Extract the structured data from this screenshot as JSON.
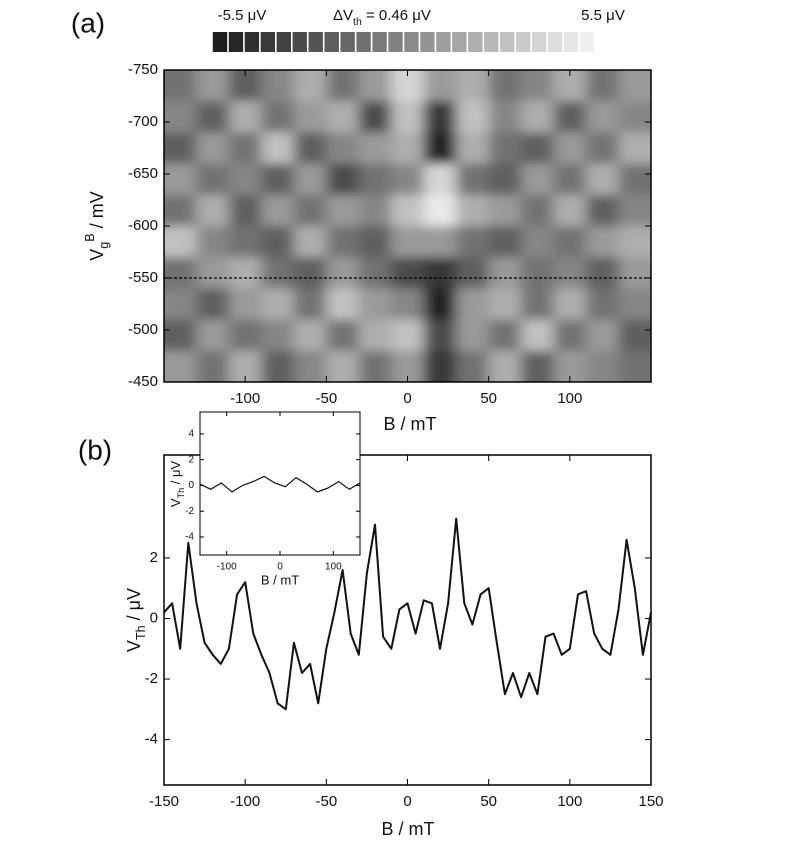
{
  "chart_data": [
    {
      "type": "heatmap",
      "panel_label": "(a)",
      "x_label": "B / mT",
      "y_label": [
        "V",
        "g",
        "B",
        " / mV"
      ],
      "x": [
        -140,
        -120,
        -100,
        -80,
        -60,
        -40,
        -20,
        0,
        20,
        40,
        60,
        80,
        100,
        120,
        140
      ],
      "y": [
        -735,
        -705,
        -675,
        -645,
        -615,
        -585,
        -555,
        -525,
        -495,
        -465
      ],
      "z": [
        [
          -1,
          1,
          -2,
          0,
          2,
          -1,
          1,
          4,
          1,
          2,
          -1,
          0,
          2,
          -1,
          1
        ],
        [
          0,
          -2,
          2,
          -1,
          1,
          2,
          -3,
          3,
          -4,
          3,
          0,
          2,
          -2,
          1,
          0
        ],
        [
          -2,
          1,
          -1,
          3,
          -2,
          0,
          1,
          2,
          -5,
          2,
          -1,
          -2,
          1,
          -1,
          2
        ],
        [
          1,
          -1,
          0,
          -2,
          1,
          -3,
          -1,
          0,
          4,
          -1,
          -2,
          1,
          -1,
          2,
          -1
        ],
        [
          -1,
          2,
          -2,
          1,
          -1,
          1,
          0,
          3,
          5,
          2,
          1,
          -1,
          2,
          -2,
          0
        ],
        [
          3,
          0,
          -1,
          -2,
          2,
          -1,
          -2,
          1,
          1,
          -1,
          -2,
          0,
          -1,
          1,
          2
        ],
        [
          -1,
          1,
          2,
          -1,
          -2,
          1,
          -1,
          -3,
          -4,
          -2,
          1,
          -1,
          0,
          -2,
          1
        ],
        [
          0,
          -2,
          1,
          2,
          -1,
          3,
          1,
          0,
          -5,
          1,
          2,
          -1,
          2,
          -1,
          0
        ],
        [
          -2,
          1,
          -1,
          0,
          2,
          -1,
          2,
          3,
          -3,
          1,
          -1,
          3,
          -1,
          1,
          -2
        ],
        [
          1,
          -1,
          2,
          -2,
          0,
          2,
          -1,
          1,
          -4,
          -1,
          2,
          -2,
          1,
          0,
          -1
        ]
      ],
      "xlim": [
        -150,
        150
      ],
      "ylim": [
        -450,
        -750
      ],
      "xticks": [
        -100,
        -50,
        0,
        50,
        100
      ],
      "yticks": [
        -750,
        -700,
        -650,
        -600,
        -550,
        -500,
        -450
      ],
      "clim": [
        -5.5,
        5.5
      ],
      "step": 0.46,
      "colorbar_labels": {
        "min": "-5.5 μV",
        "step": [
          "ΔV",
          "th",
          " = 0.46 μV"
        ],
        "max": "5.5 μV"
      },
      "hline": -550
    },
    {
      "type": "line",
      "panel_label": "(b)",
      "x_label": "B / mT",
      "y_label": [
        "V",
        "Th",
        " / μV"
      ],
      "color": "#111111",
      "x": [
        -150,
        -145,
        -140,
        -135,
        -130,
        -125,
        -120,
        -115,
        -110,
        -105,
        -100,
        -95,
        -90,
        -85,
        -80,
        -75,
        -70,
        -65,
        -60,
        -55,
        -50,
        -45,
        -40,
        -35,
        -30,
        -25,
        -20,
        -15,
        -10,
        -5,
        0,
        5,
        10,
        15,
        20,
        25,
        30,
        35,
        40,
        45,
        50,
        55,
        60,
        65,
        70,
        75,
        80,
        85,
        90,
        95,
        100,
        105,
        110,
        115,
        120,
        125,
        130,
        135,
        140,
        145,
        150
      ],
      "values": [
        0.2,
        0.5,
        -1.0,
        2.5,
        0.5,
        -0.8,
        -1.2,
        -1.5,
        -1.0,
        0.8,
        1.2,
        -0.5,
        -1.2,
        -1.8,
        -2.8,
        -3.0,
        -0.8,
        -1.8,
        -1.5,
        -2.8,
        -1.0,
        0.2,
        1.6,
        -0.5,
        -1.2,
        1.5,
        3.1,
        -0.6,
        -1.0,
        0.3,
        0.5,
        -0.5,
        0.6,
        0.5,
        -1.0,
        0.5,
        3.3,
        0.5,
        -0.2,
        0.8,
        1.0,
        -0.8,
        -2.5,
        -1.8,
        -2.6,
        -1.8,
        -2.5,
        -0.6,
        -0.5,
        -1.2,
        -1.0,
        0.8,
        0.9,
        -0.5,
        -1.0,
        -1.2,
        0.3,
        2.6,
        1.0,
        -1.2,
        0.2
      ],
      "xlim": [
        -150,
        150
      ],
      "ylim": [
        -5.5,
        5.4
      ],
      "xticks": [
        -150,
        -100,
        -50,
        0,
        50,
        100,
        150
      ],
      "yticks": [
        -4,
        -2,
        0,
        2
      ]
    },
    {
      "type": "line",
      "x_label": "B / mT",
      "y_label": [
        "V",
        "Th",
        " / μV"
      ],
      "color": "#111111",
      "x": [
        -150,
        -130,
        -110,
        -90,
        -70,
        -50,
        -30,
        -10,
        10,
        30,
        50,
        70,
        90,
        110,
        130,
        150
      ],
      "values": [
        0.1,
        -0.3,
        0.2,
        -0.5,
        0,
        0.3,
        0.7,
        0.2,
        -0.1,
        0.6,
        0.1,
        -0.5,
        -0.2,
        0.3,
        -0.3,
        0.2
      ],
      "xlim": [
        -150,
        150
      ],
      "ylim": [
        -5.4,
        5.7
      ],
      "xticks": [
        -100,
        0,
        100
      ],
      "yticks": [
        -4,
        -2,
        0,
        2,
        4
      ]
    }
  ]
}
